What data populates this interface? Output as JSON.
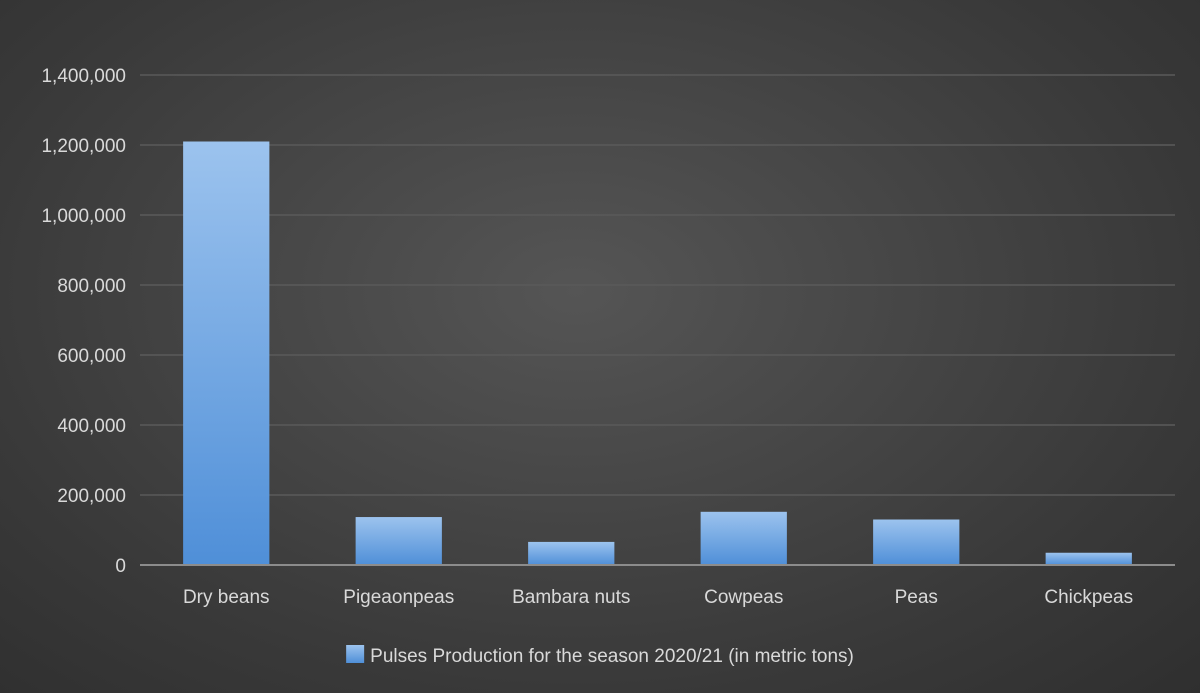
{
  "chart_data": {
    "type": "bar",
    "title": "",
    "xlabel": "",
    "ylabel": "",
    "categories": [
      "Dry beans",
      "Pigeaonpeas",
      "Bambara nuts",
      "Cowpeas",
      "Peas",
      "Chickpeas"
    ],
    "series": [
      {
        "name": "Pulses Production for the season 2020/21 (in metric tons)",
        "values": [
          1210000,
          137000,
          66000,
          152000,
          130000,
          35000
        ],
        "color": "#6fa8e6"
      }
    ],
    "ylim": [
      0,
      1400000
    ],
    "yticks": [
      0,
      200000,
      400000,
      600000,
      800000,
      1000000,
      1200000,
      1400000
    ],
    "ytick_labels": [
      "0",
      "200,000",
      "400,000",
      "600,000",
      "800,000",
      "1,000,000",
      "1,200,000",
      "1,400,000"
    ],
    "grid": true,
    "legend_position": "bottom"
  },
  "colors": {
    "bar_top": "#9cc3ee",
    "bar_bottom": "#4f8fd8",
    "grid": "#5a5a5a",
    "axis": "#8c8c8c",
    "text": "#d9d9d9"
  }
}
